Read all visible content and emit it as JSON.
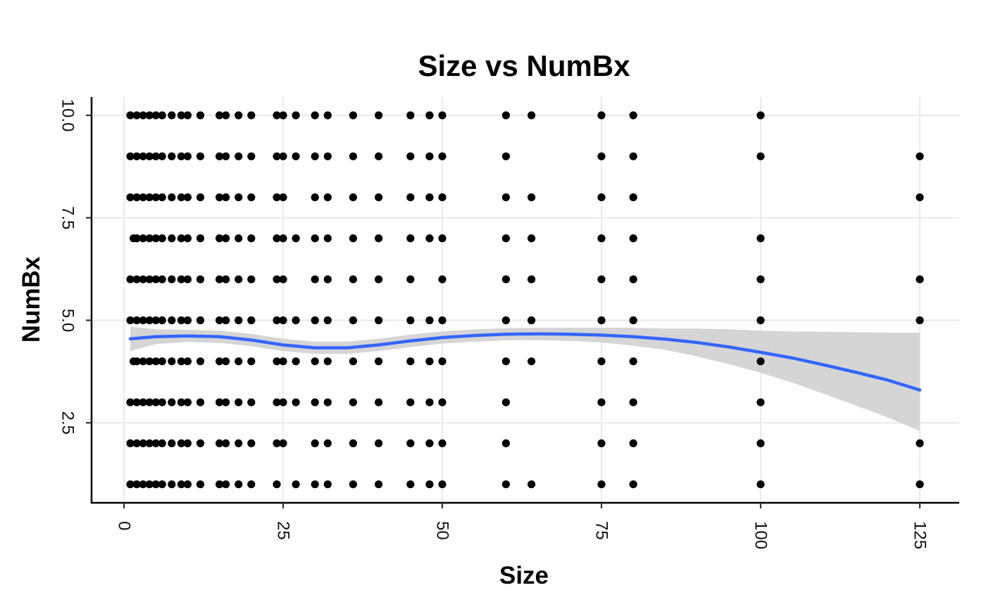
{
  "chart_data": {
    "type": "scatter",
    "title": "Size vs NumBx",
    "xlabel": "Size",
    "ylabel": "NumBx",
    "xlim": [
      -2.5,
      131
    ],
    "ylim": [
      0.55,
      10.45
    ],
    "x_ticks": [
      0,
      25,
      50,
      75,
      100,
      125
    ],
    "x_tick_labels": [
      "0",
      "25",
      "50",
      "75",
      "100",
      "125"
    ],
    "y_ticks": [
      2.5,
      5.0,
      7.5,
      10.0
    ],
    "y_tick_labels": [
      "2.5",
      "5.0",
      "7.5",
      "10.0"
    ],
    "tick_label_rotation": "vertical",
    "grid": true,
    "legend": "none",
    "point_color": "#000000",
    "smooth_color": "#3366FF",
    "band_color": "#d3d3d3",
    "rows": [
      {
        "y": 10,
        "x": [
          1,
          2,
          3,
          4,
          5,
          6,
          7.5,
          9,
          10,
          12,
          15,
          16,
          18,
          20,
          24,
          25,
          27,
          30,
          32,
          36,
          40,
          45,
          48,
          50,
          60,
          64,
          75,
          80,
          100
        ]
      },
      {
        "y": 9,
        "x": [
          1,
          2,
          3,
          4,
          5,
          6,
          7.5,
          9,
          10,
          12,
          15,
          16,
          18,
          20,
          24,
          25,
          27,
          30,
          32,
          36,
          40,
          45,
          48,
          50,
          60,
          75,
          80,
          100,
          125
        ]
      },
      {
        "y": 8,
        "x": [
          1,
          2,
          3,
          4,
          5,
          6,
          7.5,
          9,
          10,
          12,
          15,
          16,
          18,
          20,
          24,
          25,
          30,
          32,
          36,
          40,
          45,
          48,
          50,
          60,
          64,
          75,
          80,
          125
        ]
      },
      {
        "y": 7,
        "x": [
          1.5,
          2,
          3,
          4,
          5,
          6,
          7.5,
          9,
          10,
          12,
          15,
          16,
          18,
          20,
          24,
          25,
          27,
          30,
          32,
          36,
          40,
          45,
          48,
          50,
          60,
          64,
          75,
          80,
          100
        ]
      },
      {
        "y": 6,
        "x": [
          1,
          2,
          3,
          4,
          5,
          6,
          7.5,
          9,
          10,
          12,
          15,
          16,
          18,
          20,
          24,
          25,
          30,
          32,
          36,
          40,
          45,
          50,
          60,
          64,
          75,
          80,
          100,
          125
        ]
      },
      {
        "y": 5,
        "x": [
          1,
          2,
          3,
          4,
          5,
          6,
          7.5,
          9,
          10,
          12,
          15,
          16,
          18,
          20,
          24,
          25,
          27,
          30,
          32,
          36,
          40,
          45,
          48,
          50,
          60,
          64,
          75,
          80,
          100,
          125
        ]
      },
      {
        "y": 4,
        "x": [
          1.5,
          2,
          3,
          4,
          5,
          6,
          7.5,
          9,
          10,
          12,
          15,
          16,
          18,
          20,
          24,
          25,
          27,
          30,
          32,
          36,
          40,
          45,
          48,
          50,
          60,
          64,
          75,
          80,
          100
        ]
      },
      {
        "y": 3,
        "x": [
          1,
          2,
          3,
          4,
          5,
          6,
          7.5,
          9,
          10,
          12,
          15,
          16,
          18,
          20,
          24,
          25,
          27,
          30,
          32,
          36,
          40,
          45,
          48,
          50,
          60,
          75,
          80,
          100
        ]
      },
      {
        "y": 2,
        "x": [
          1,
          2,
          3,
          4,
          5,
          6,
          7.5,
          9,
          10,
          12,
          15,
          16,
          18,
          20,
          24,
          25,
          30,
          32,
          36,
          40,
          45,
          48,
          50,
          60,
          75,
          80,
          100,
          125
        ]
      },
      {
        "y": 1,
        "x": [
          1,
          2,
          3,
          4,
          5,
          6,
          7.5,
          9,
          10,
          12,
          15,
          16,
          18,
          20,
          24,
          27,
          30,
          32,
          36,
          40,
          45,
          48,
          50,
          60,
          64,
          75,
          80,
          100,
          125
        ]
      }
    ],
    "smooth_line": {
      "x": [
        1,
        5,
        10,
        15,
        20,
        25,
        30,
        35,
        40,
        45,
        50,
        55,
        60,
        65,
        70,
        75,
        80,
        85,
        90,
        95,
        100,
        105,
        110,
        115,
        120,
        125
      ],
      "y": [
        4.55,
        4.6,
        4.62,
        4.6,
        4.52,
        4.4,
        4.33,
        4.33,
        4.4,
        4.5,
        4.58,
        4.63,
        4.66,
        4.67,
        4.66,
        4.64,
        4.6,
        4.54,
        4.46,
        4.35,
        4.22,
        4.08,
        3.91,
        3.73,
        3.54,
        3.3
      ],
      "ymin": [
        4.25,
        4.42,
        4.47,
        4.45,
        4.37,
        4.25,
        4.18,
        4.18,
        4.25,
        4.35,
        4.43,
        4.48,
        4.51,
        4.52,
        4.5,
        4.46,
        4.38,
        4.28,
        4.12,
        3.93,
        3.72,
        3.48,
        3.2,
        2.92,
        2.63,
        2.3
      ],
      "ymax": [
        4.85,
        4.78,
        4.77,
        4.75,
        4.67,
        4.55,
        4.48,
        4.48,
        4.55,
        4.65,
        4.73,
        4.78,
        4.81,
        4.82,
        4.82,
        4.82,
        4.82,
        4.8,
        4.8,
        4.78,
        4.75,
        4.73,
        4.72,
        4.71,
        4.7,
        4.7
      ]
    }
  }
}
